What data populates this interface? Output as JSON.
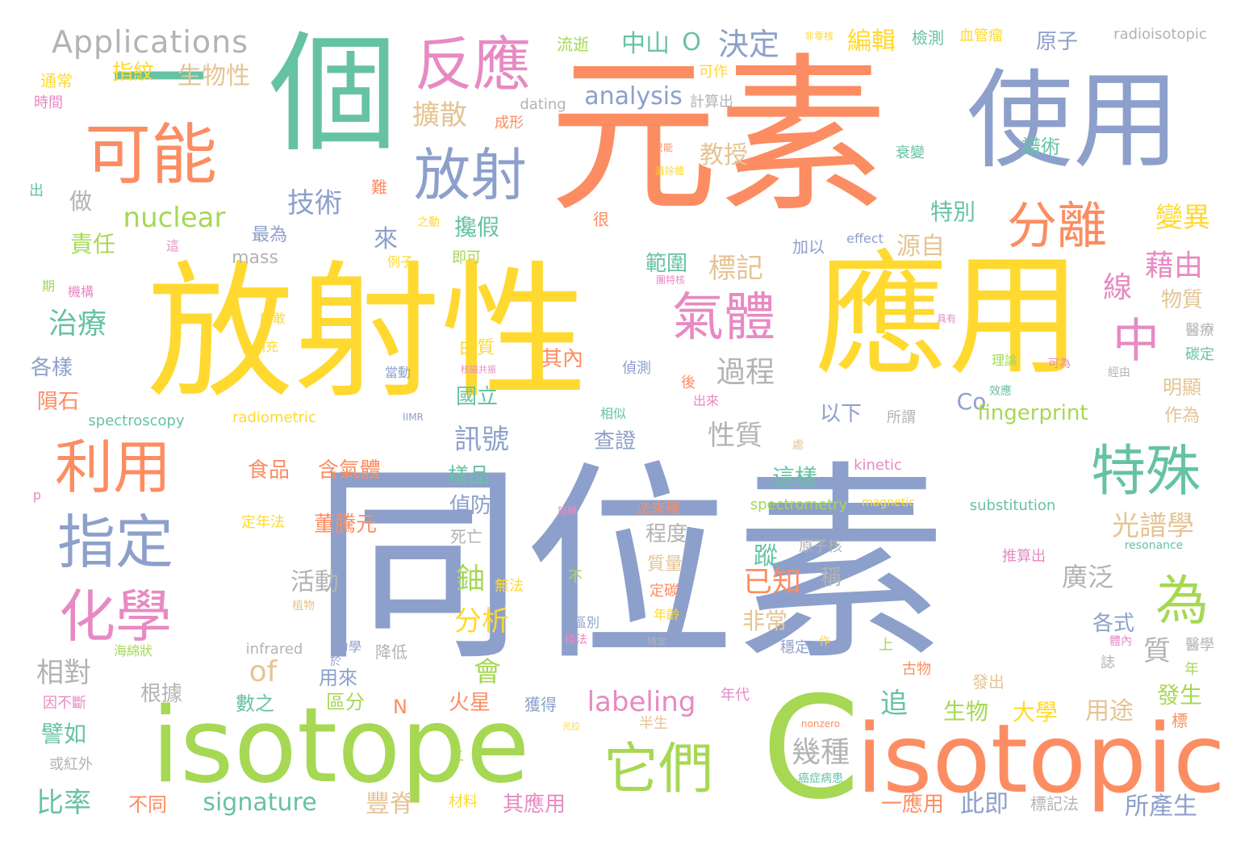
{
  "palette": {
    "green": "#66c2a5",
    "orange": "#fc8d62",
    "blue": "#8da0cb",
    "pink": "#e78ac3",
    "lime": "#a6d854",
    "yellow": "#ffd92f",
    "tan": "#e5c494",
    "gray": "#b3b3b3"
  },
  "words": [
    {
      "text": "同位素",
      "color": "blue"
    },
    {
      "text": "放射性",
      "color": "yellow"
    },
    {
      "text": "元素",
      "color": "orange"
    },
    {
      "text": "應用",
      "color": "yellow"
    },
    {
      "text": "個",
      "color": "green"
    },
    {
      "text": "使用",
      "color": "blue"
    },
    {
      "text": "一",
      "color": "green"
    },
    {
      "text": "isotope",
      "color": "lime"
    },
    {
      "text": "isotopic",
      "color": "orange"
    },
    {
      "text": "C",
      "color": "lime"
    },
    {
      "text": "可能",
      "color": "orange"
    },
    {
      "text": "反應",
      "color": "pink"
    },
    {
      "text": "放射",
      "color": "blue"
    },
    {
      "text": "氣體",
      "color": "pink"
    },
    {
      "text": "利用",
      "color": "orange"
    },
    {
      "text": "指定",
      "color": "blue"
    },
    {
      "text": "化學",
      "color": "pink"
    },
    {
      "text": "特殊",
      "color": "green"
    },
    {
      "text": "它們",
      "color": "lime"
    },
    {
      "text": "分離",
      "color": "orange"
    },
    {
      "text": "中",
      "color": "pink"
    },
    {
      "text": "為",
      "color": "lime"
    },
    {
      "text": "Applications",
      "color": "gray"
    },
    {
      "text": "決定",
      "color": "blue"
    },
    {
      "text": "中山",
      "color": "green"
    },
    {
      "text": "O",
      "color": "green"
    },
    {
      "text": "編輯",
      "color": "yellow"
    },
    {
      "text": "檢測",
      "color": "green"
    },
    {
      "text": "血管瘤",
      "color": "yellow"
    },
    {
      "text": "非零核",
      "color": "yellow"
    },
    {
      "text": "原子",
      "color": "blue"
    },
    {
      "text": "radioisotopic",
      "color": "gray"
    },
    {
      "text": "流逝",
      "color": "lime"
    },
    {
      "text": "可作",
      "color": "yellow"
    },
    {
      "text": "指紋",
      "color": "yellow"
    },
    {
      "text": "生物性",
      "color": "tan"
    },
    {
      "text": "通常",
      "color": "yellow"
    },
    {
      "text": "時間",
      "color": "pink"
    },
    {
      "text": "analysis",
      "color": "blue"
    },
    {
      "text": "計算出",
      "color": "gray"
    },
    {
      "text": "dating",
      "color": "gray"
    },
    {
      "text": "擴散",
      "color": "tan"
    },
    {
      "text": "成形",
      "color": "orange"
    },
    {
      "text": "譜術",
      "color": "green"
    },
    {
      "text": "衰變",
      "color": "green"
    },
    {
      "text": "教授",
      "color": "tan"
    },
    {
      "text": "只能",
      "color": "orange"
    },
    {
      "text": "清除體",
      "color": "yellow"
    },
    {
      "text": "技術",
      "color": "blue"
    },
    {
      "text": "nuclear",
      "color": "lime"
    },
    {
      "text": "難",
      "color": "orange"
    },
    {
      "text": "出",
      "color": "green"
    },
    {
      "text": "做",
      "color": "gray"
    },
    {
      "text": "來",
      "color": "blue"
    },
    {
      "text": "攙假",
      "color": "green"
    },
    {
      "text": "很",
      "color": "orange"
    },
    {
      "text": "特別",
      "color": "green"
    },
    {
      "text": "變異",
      "color": "yellow"
    },
    {
      "text": "責任",
      "color": "lime"
    },
    {
      "text": "最為",
      "color": "blue"
    },
    {
      "text": "之動",
      "color": "yellow"
    },
    {
      "text": "例子",
      "color": "yellow"
    },
    {
      "text": "即可",
      "color": "lime"
    },
    {
      "text": "這",
      "color": "pink"
    },
    {
      "text": "加以",
      "color": "blue"
    },
    {
      "text": "effect",
      "color": "blue"
    },
    {
      "text": "源自",
      "color": "tan"
    },
    {
      "text": "mass",
      "color": "gray"
    },
    {
      "text": "範圍",
      "color": "green"
    },
    {
      "text": "標記",
      "color": "tan"
    },
    {
      "text": "藉由",
      "color": "pink"
    },
    {
      "text": "線",
      "color": "pink"
    },
    {
      "text": "物質",
      "color": "tan"
    },
    {
      "text": "期",
      "color": "lime"
    },
    {
      "text": "機構",
      "color": "pink"
    },
    {
      "text": "團特核",
      "color": "pink"
    },
    {
      "text": "治療",
      "color": "green"
    },
    {
      "text": "所敢",
      "color": "yellow"
    },
    {
      "text": "具有",
      "color": "pink"
    },
    {
      "text": "醫療",
      "color": "gray"
    },
    {
      "text": "補充",
      "color": "yellow"
    },
    {
      "text": "由質",
      "color": "yellow"
    },
    {
      "text": "其內",
      "color": "orange"
    },
    {
      "text": "過程",
      "color": "gray"
    },
    {
      "text": "碳定",
      "color": "green"
    },
    {
      "text": "各樣",
      "color": "blue"
    },
    {
      "text": "當動",
      "color": "blue"
    },
    {
      "text": "核磁共振",
      "color": "pink"
    },
    {
      "text": "偵測",
      "color": "blue"
    },
    {
      "text": "理論",
      "color": "lime"
    },
    {
      "text": "可為",
      "color": "pink"
    },
    {
      "text": "經由",
      "color": "gray"
    },
    {
      "text": "隕石",
      "color": "orange"
    },
    {
      "text": "國立",
      "color": "green"
    },
    {
      "text": "後",
      "color": "orange"
    },
    {
      "text": "出來",
      "color": "pink"
    },
    {
      "text": "效應",
      "color": "green"
    },
    {
      "text": "明顯",
      "color": "tan"
    },
    {
      "text": "spectroscopy",
      "color": "green"
    },
    {
      "text": "radiometric",
      "color": "yellow"
    },
    {
      "text": "IIMR",
      "color": "blue"
    },
    {
      "text": "相似",
      "color": "green"
    },
    {
      "text": "所謂",
      "color": "gray"
    },
    {
      "text": "以下",
      "color": "blue"
    },
    {
      "text": "Co",
      "color": "blue"
    },
    {
      "text": "fingerprint",
      "color": "lime"
    },
    {
      "text": "作為",
      "color": "tan"
    },
    {
      "text": "性質",
      "color": "gray"
    },
    {
      "text": "訊號",
      "color": "blue"
    },
    {
      "text": "查證",
      "color": "blue"
    },
    {
      "text": "處",
      "color": "tan"
    },
    {
      "text": "食品",
      "color": "orange"
    },
    {
      "text": "含氣體",
      "color": "orange"
    },
    {
      "text": "樣品",
      "color": "green"
    },
    {
      "text": "這樣",
      "color": "green"
    },
    {
      "text": "kinetic",
      "color": "pink"
    },
    {
      "text": "p",
      "color": "pink"
    },
    {
      "text": "旋轉",
      "color": "pink"
    },
    {
      "text": "偵防",
      "color": "blue"
    },
    {
      "text": "spectrometry",
      "color": "lime"
    },
    {
      "text": "magnetic",
      "color": "yellow"
    },
    {
      "text": "substitution",
      "color": "green"
    },
    {
      "text": "法來確",
      "color": "orange"
    },
    {
      "text": "定年法",
      "color": "yellow"
    },
    {
      "text": "董騰元",
      "color": "orange"
    },
    {
      "text": "光譜學",
      "color": "tan"
    },
    {
      "text": "死亡",
      "color": "gray"
    },
    {
      "text": "程度",
      "color": "gray"
    },
    {
      "text": "原子核",
      "color": "gray"
    },
    {
      "text": "resonance",
      "color": "green"
    },
    {
      "text": "蹤",
      "color": "green"
    },
    {
      "text": "推算出",
      "color": "pink"
    },
    {
      "text": "已知",
      "color": "orange"
    },
    {
      "text": "鈾",
      "color": "lime"
    },
    {
      "text": "活動",
      "color": "gray"
    },
    {
      "text": "稱",
      "color": "gray"
    },
    {
      "text": "廣泛",
      "color": "gray"
    },
    {
      "text": "質量",
      "color": "tan"
    },
    {
      "text": "無法",
      "color": "yellow"
    },
    {
      "text": "不",
      "color": "lime"
    },
    {
      "text": "定碳",
      "color": "orange"
    },
    {
      "text": "植物",
      "color": "tan"
    },
    {
      "text": "年齡",
      "color": "yellow"
    },
    {
      "text": "分析",
      "color": "yellow"
    },
    {
      "text": "非常",
      "color": "tan"
    },
    {
      "text": "各式",
      "color": "blue"
    },
    {
      "text": "區別",
      "color": "blue"
    },
    {
      "text": "換法",
      "color": "pink"
    },
    {
      "text": "特定",
      "color": "gray"
    },
    {
      "text": "質",
      "color": "gray"
    },
    {
      "text": "體內",
      "color": "pink"
    },
    {
      "text": "醫學",
      "color": "gray"
    },
    {
      "text": "infrared",
      "color": "gray"
    },
    {
      "text": "力學",
      "color": "blue"
    },
    {
      "text": "降低",
      "color": "gray"
    },
    {
      "text": "穩定",
      "color": "blue"
    },
    {
      "text": "作",
      "color": "yellow"
    },
    {
      "text": "上",
      "color": "lime"
    },
    {
      "text": "海綿狀",
      "color": "lime"
    },
    {
      "text": "於",
      "color": "blue"
    },
    {
      "text": "相對",
      "color": "gray"
    },
    {
      "text": "of",
      "color": "tan"
    },
    {
      "text": "會",
      "color": "lime"
    },
    {
      "text": "用來",
      "color": "blue"
    },
    {
      "text": "古物",
      "color": "orange"
    },
    {
      "text": "誌",
      "color": "gray"
    },
    {
      "text": "年",
      "color": "lime"
    },
    {
      "text": "根據",
      "color": "gray"
    },
    {
      "text": "labeling",
      "color": "pink"
    },
    {
      "text": "發出",
      "color": "tan"
    },
    {
      "text": "發生",
      "color": "lime"
    },
    {
      "text": "因不斷",
      "color": "pink"
    },
    {
      "text": "追",
      "color": "green"
    },
    {
      "text": "數之",
      "color": "green"
    },
    {
      "text": "區分",
      "color": "lime"
    },
    {
      "text": "N",
      "color": "orange"
    },
    {
      "text": "火星",
      "color": "orange"
    },
    {
      "text": "獲得",
      "color": "blue"
    },
    {
      "text": "年代",
      "color": "pink"
    },
    {
      "text": "生物",
      "color": "lime"
    },
    {
      "text": "大學",
      "color": "yellow"
    },
    {
      "text": "用途",
      "color": "tan"
    },
    {
      "text": "標",
      "color": "orange"
    },
    {
      "text": "譬如",
      "color": "green"
    },
    {
      "text": "半生",
      "color": "tan"
    },
    {
      "text": "光拉",
      "color": "yellow"
    },
    {
      "text": "nonzero",
      "color": "orange"
    },
    {
      "text": "幾種",
      "color": "gray"
    },
    {
      "text": "或紅外",
      "color": "gray"
    },
    {
      "text": "二",
      "color": "lime"
    },
    {
      "text": "癌症病患",
      "color": "green"
    },
    {
      "text": "比率",
      "color": "green"
    },
    {
      "text": "不同",
      "color": "orange"
    },
    {
      "text": "signature",
      "color": "green"
    },
    {
      "text": "豐脊",
      "color": "tan"
    },
    {
      "text": "材料",
      "color": "yellow"
    },
    {
      "text": "其應用",
      "color": "pink"
    },
    {
      "text": "一應用",
      "color": "orange"
    },
    {
      "text": "此即",
      "color": "blue"
    },
    {
      "text": "標記法",
      "color": "gray"
    },
    {
      "text": "所產生",
      "color": "blue"
    }
  ]
}
